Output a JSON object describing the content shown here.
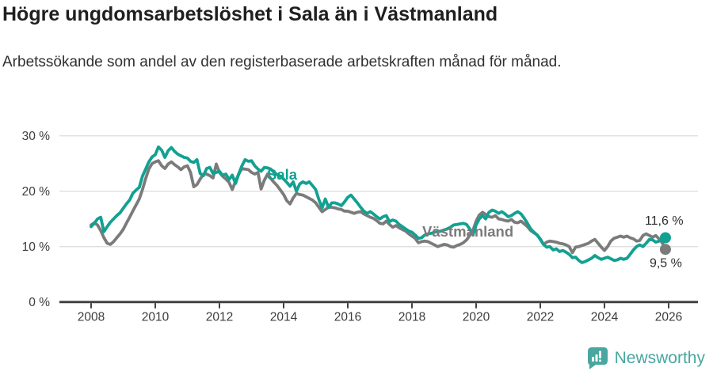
{
  "header": {
    "title": "Högre ungdomsarbetslöshet i Sala än i Västmanland",
    "subtitle": "Arbetssökande som andel av den registerbaserade arbetskraften månad för månad."
  },
  "footer": {
    "brand": "Newsworthy",
    "brand_color": "#48a79e"
  },
  "chart_data": {
    "type": "line",
    "title": "Högre ungdomsarbetslöshet i Sala än i Västmanland",
    "subtitle": "Arbetssökande som andel av den registerbaserade arbetskraften månad för månad.",
    "x_unit": "decimal_year",
    "x_start": 2008.0,
    "x_step": 0.1,
    "x_axis": {
      "ticks": [
        2008,
        2010,
        2012,
        2014,
        2016,
        2018,
        2020,
        2022,
        2024,
        2026
      ],
      "range": [
        2007.0,
        2026.9
      ]
    },
    "y_axis": {
      "ticks": [
        0,
        10,
        20,
        30
      ],
      "tick_labels": [
        "0 %",
        "10 %",
        "20 %",
        "30 %"
      ],
      "range": [
        0,
        31
      ],
      "grid": true
    },
    "colors": {
      "grid": "#dedede",
      "axis": "#424242",
      "tick_text": "#3c3c3c",
      "value_text": "#2e2e2e"
    },
    "series": [
      {
        "name": "Sala",
        "color": "#12a191",
        "end_label": "11,6 %",
        "end_value": 11.6,
        "values": [
          13.6,
          14.2,
          15.0,
          15.3,
          12.7,
          13.6,
          14.4,
          15.0,
          15.6,
          16.1,
          16.9,
          17.7,
          18.4,
          19.6,
          20.2,
          20.7,
          22.7,
          24.0,
          25.3,
          26.2,
          26.6,
          28.0,
          27.4,
          26.1,
          27.3,
          27.9,
          27.2,
          26.7,
          26.4,
          26.1,
          26.0,
          25.4,
          25.2,
          25.7,
          23.2,
          22.8,
          24.1,
          24.3,
          23.2,
          23.4,
          23.6,
          22.9,
          23.1,
          22.1,
          22.9,
          21.4,
          23.1,
          24.6,
          25.7,
          25.4,
          25.5,
          24.6,
          24.0,
          23.6,
          24.3,
          24.2,
          24.0,
          23.4,
          23.0,
          22.7,
          22.2,
          21.6,
          20.9,
          21.7,
          20.0,
          21.3,
          21.7,
          21.4,
          21.7,
          21.0,
          20.3,
          18.5,
          17.0,
          18.6,
          17.1,
          17.9,
          17.9,
          17.7,
          17.4,
          18.1,
          18.9,
          19.3,
          18.6,
          17.9,
          17.1,
          16.4,
          16.0,
          16.3,
          15.9,
          15.4,
          15.0,
          15.4,
          15.6,
          14.5,
          14.8,
          14.6,
          14.0,
          13.6,
          13.2,
          12.8,
          12.6,
          12.1,
          11.5,
          11.6,
          12.1,
          12.3,
          12.4,
          12.6,
          12.7,
          12.8,
          13.0,
          13.2,
          13.5,
          13.9,
          14.0,
          14.1,
          14.2,
          14.0,
          13.2,
          12.1,
          13.9,
          15.0,
          15.6,
          15.0,
          16.2,
          16.6,
          16.4,
          16.0,
          16.3,
          15.9,
          15.4,
          15.6,
          16.0,
          16.3,
          15.9,
          15.1,
          14.2,
          13.2,
          12.6,
          12.1,
          11.3,
          10.4,
          9.9,
          10.0,
          9.4,
          9.6,
          9.1,
          9.3,
          9.0,
          8.6,
          8.0,
          8.1,
          7.5,
          7.1,
          7.3,
          7.6,
          7.9,
          8.4,
          8.0,
          7.7,
          7.9,
          8.1,
          7.8,
          7.5,
          7.6,
          7.9,
          7.7,
          7.9,
          8.6,
          9.4,
          10.0,
          10.3,
          10.0,
          10.6,
          11.3,
          11.2,
          10.8,
          11.0,
          11.2,
          11.6
        ]
      },
      {
        "name": "Västmanland",
        "color": "#7b7b7b",
        "end_label": "9,5 %",
        "end_value": 9.5,
        "values": [
          13.9,
          14.3,
          13.9,
          12.9,
          11.6,
          10.6,
          10.4,
          10.9,
          11.6,
          12.3,
          13.1,
          14.2,
          15.3,
          16.4,
          17.5,
          18.6,
          20.3,
          22.3,
          24.0,
          25.0,
          25.3,
          25.5,
          24.6,
          24.1,
          24.9,
          25.3,
          24.8,
          24.4,
          23.9,
          24.4,
          24.6,
          23.4,
          20.8,
          21.2,
          22.2,
          23.1,
          23.1,
          22.8,
          22.4,
          24.9,
          23.4,
          22.7,
          22.2,
          21.6,
          20.3,
          21.8,
          23.1,
          24.1,
          24.0,
          23.9,
          23.4,
          23.1,
          23.4,
          20.4,
          22.0,
          23.1,
          22.3,
          21.6,
          21.0,
          20.2,
          19.4,
          18.3,
          17.7,
          18.8,
          19.6,
          19.4,
          19.3,
          19.0,
          18.7,
          18.4,
          17.9,
          17.1,
          16.3,
          16.7,
          17.1,
          17.1,
          17.0,
          16.8,
          16.7,
          16.4,
          16.4,
          16.2,
          16.0,
          16.2,
          16.3,
          15.9,
          15.6,
          15.3,
          15.1,
          14.7,
          14.2,
          14.1,
          14.6,
          14.0,
          13.5,
          13.8,
          13.4,
          13.1,
          12.8,
          12.3,
          11.9,
          11.5,
          10.7,
          10.9,
          11.0,
          10.9,
          10.6,
          10.3,
          10.0,
          10.2,
          10.4,
          10.3,
          10.0,
          9.9,
          10.2,
          10.4,
          10.7,
          11.2,
          12.0,
          12.9,
          14.6,
          15.7,
          16.2,
          15.8,
          15.4,
          15.3,
          15.6,
          15.0,
          14.9,
          14.7,
          14.6,
          14.9,
          14.4,
          14.3,
          14.6,
          14.1,
          13.6,
          12.9,
          12.5,
          12.1,
          11.4,
          10.4,
          10.8,
          11.0,
          10.9,
          10.8,
          10.6,
          10.5,
          10.3,
          10.0,
          8.9,
          9.9,
          10.0,
          10.2,
          10.4,
          10.6,
          11.0,
          11.3,
          10.6,
          9.9,
          9.3,
          10.0,
          11.0,
          11.5,
          11.7,
          11.9,
          11.7,
          11.9,
          11.6,
          11.4,
          11.0,
          11.1,
          12.0,
          12.3,
          12.0,
          11.7,
          12.0,
          11.4,
          10.7,
          9.5
        ]
      }
    ],
    "legend_position": "inline-labels"
  }
}
